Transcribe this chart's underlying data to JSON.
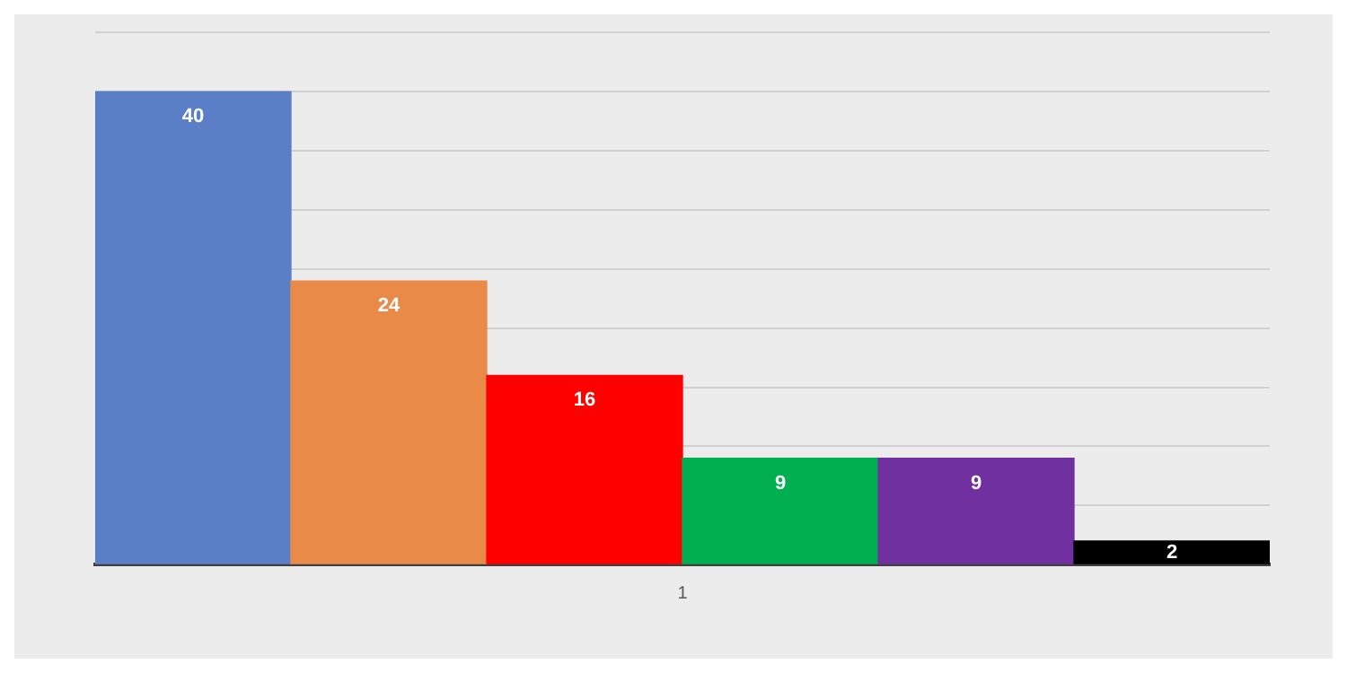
{
  "chart_data": {
    "type": "bar",
    "categories": [
      null,
      null,
      null,
      null,
      null,
      null
    ],
    "values": [
      40,
      24,
      16,
      9,
      9,
      2
    ],
    "colors": [
      "#5b7fc7",
      "#ea8a48",
      "#ff0000",
      "#00b050",
      "#7030a0",
      "#000000"
    ],
    "annotations": [
      "1"
    ],
    "ylim": [
      0,
      45
    ],
    "yticks": [
      {
        "value": 0,
        "label": null
      },
      {
        "value": 5,
        "label": null
      },
      {
        "value": 10,
        "label": null
      },
      {
        "value": 15,
        "label": null
      },
      {
        "value": 20,
        "label": null
      },
      {
        "value": 25,
        "label": null
      },
      {
        "value": 30,
        "label": null
      },
      {
        "value": 35,
        "label": null
      },
      {
        "value": 40,
        "label": null
      },
      {
        "value": 45,
        "label": null
      }
    ],
    "grid": "y",
    "data_labels": true,
    "legend": false
  }
}
